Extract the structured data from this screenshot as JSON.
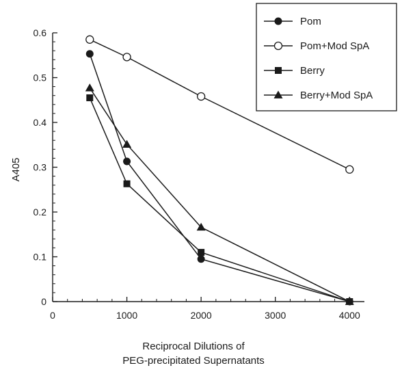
{
  "chart_data": {
    "type": "line",
    "title": "",
    "xlabel_line1": "Reciprocal Dilutions of",
    "xlabel_line2": "PEG-precipitated Supernatants",
    "ylabel": "A405",
    "xlim": [
      0,
      4200
    ],
    "ylim": [
      0,
      0.6
    ],
    "x_ticks": [
      0,
      1000,
      2000,
      3000,
      4000
    ],
    "y_ticks": [
      0,
      0.1,
      0.2,
      0.3,
      0.4,
      0.5,
      0.6
    ],
    "x_tick_labels": [
      "0",
      "1000",
      "2000",
      "3000",
      "4000"
    ],
    "y_tick_labels": [
      "0",
      "0.1",
      "0.2",
      "0.3",
      "0.4",
      "0.5",
      "0.6"
    ],
    "legend_position": "top-right",
    "grid": false,
    "series": [
      {
        "name": "Pom",
        "marker": "filled-circle",
        "x": [
          500,
          1000,
          2000,
          4000
        ],
        "y": [
          0.553,
          0.313,
          0.095,
          0.0
        ]
      },
      {
        "name": "Pom+Mod SpA",
        "marker": "open-circle",
        "x": [
          500,
          1000,
          2000,
          4000
        ],
        "y": [
          0.585,
          0.546,
          0.458,
          0.295
        ]
      },
      {
        "name": "Berry",
        "marker": "filled-square",
        "x": [
          500,
          1000,
          2000,
          4000
        ],
        "y": [
          0.455,
          0.263,
          0.11,
          0.0
        ]
      },
      {
        "name": "Berry+Mod SpA",
        "marker": "filled-triangle",
        "x": [
          500,
          1000,
          2000,
          4000
        ],
        "y": [
          0.477,
          0.351,
          0.166,
          0.0
        ]
      }
    ]
  }
}
